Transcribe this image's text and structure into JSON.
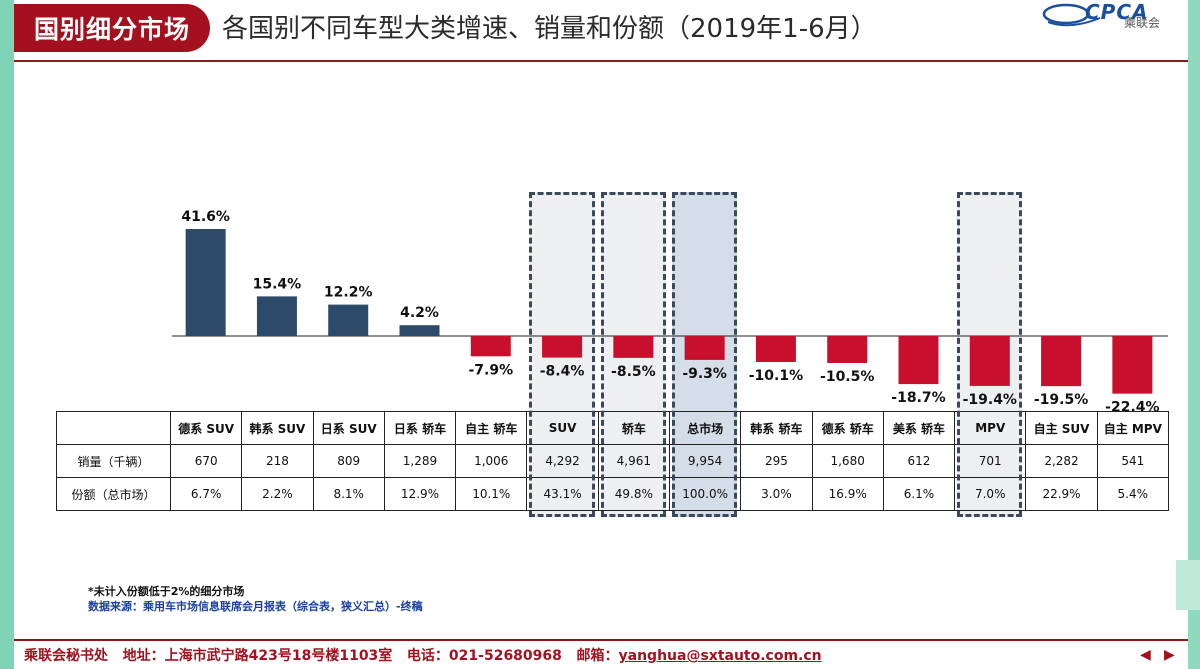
{
  "header": {
    "badge": "国别细分市场",
    "title": "各国别不同车型大类增速、销量和份额（2019年1-6月）"
  },
  "logo": {
    "text": "CPCA",
    "subtitle": "乘联会"
  },
  "colors": {
    "positive": "#2e4a6b",
    "negative": "#c8102e",
    "accent": "#a3111f"
  },
  "chart_data": {
    "type": "bar",
    "categories": [
      "德系 SUV",
      "韩系 SUV",
      "日系 SUV",
      "日系 轿车",
      "自主 轿车",
      "SUV",
      "轿车",
      "总市场",
      "韩系 轿车",
      "德系 轿车",
      "美系 轿车",
      "MPV",
      "自主 SUV",
      "自主 MPV"
    ],
    "values": [
      41.6,
      15.4,
      12.2,
      4.2,
      -7.9,
      -8.4,
      -8.5,
      -9.3,
      -10.1,
      -10.5,
      -18.7,
      -19.4,
      -19.5,
      -22.4
    ],
    "value_labels": [
      "41.6%",
      "15.4%",
      "12.2%",
      "4.2%",
      "-7.9%",
      "-8.4%",
      "-8.5%",
      "-9.3%",
      "-10.1%",
      "-10.5%",
      "-18.7%",
      "-19.4%",
      "-19.5%",
      "-22.4%"
    ],
    "highlighted": [
      "SUV",
      "轿车",
      "总市场",
      "MPV"
    ],
    "title": "",
    "xlabel": "",
    "ylabel": ""
  },
  "table": {
    "rows": [
      {
        "label": "销量（千辆）",
        "values": [
          "670",
          "218",
          "809",
          "1,289",
          "1,006",
          "4,292",
          "4,961",
          "9,954",
          "295",
          "1,680",
          "612",
          "701",
          "2,282",
          "541"
        ]
      },
      {
        "label": "份额（总市场）",
        "values": [
          "6.7%",
          "2.2%",
          "8.1%",
          "12.9%",
          "10.1%",
          "43.1%",
          "49.8%",
          "100.0%",
          "3.0%",
          "16.9%",
          "6.1%",
          "7.0%",
          "22.9%",
          "5.4%"
        ]
      }
    ]
  },
  "notes": {
    "note1": "*未计入份额低于2%的细分市场",
    "note2": "数据来源：乘用车市场信息联席会月报表（综合表，狭义汇总）-终稿"
  },
  "footer": {
    "org": "乘联会秘书处",
    "address": "地址：上海市武宁路423号18号楼1103室",
    "phone": "电话：021-52680968",
    "email_label": "邮箱：",
    "email": "yanghua@sxtauto.com.cn"
  }
}
